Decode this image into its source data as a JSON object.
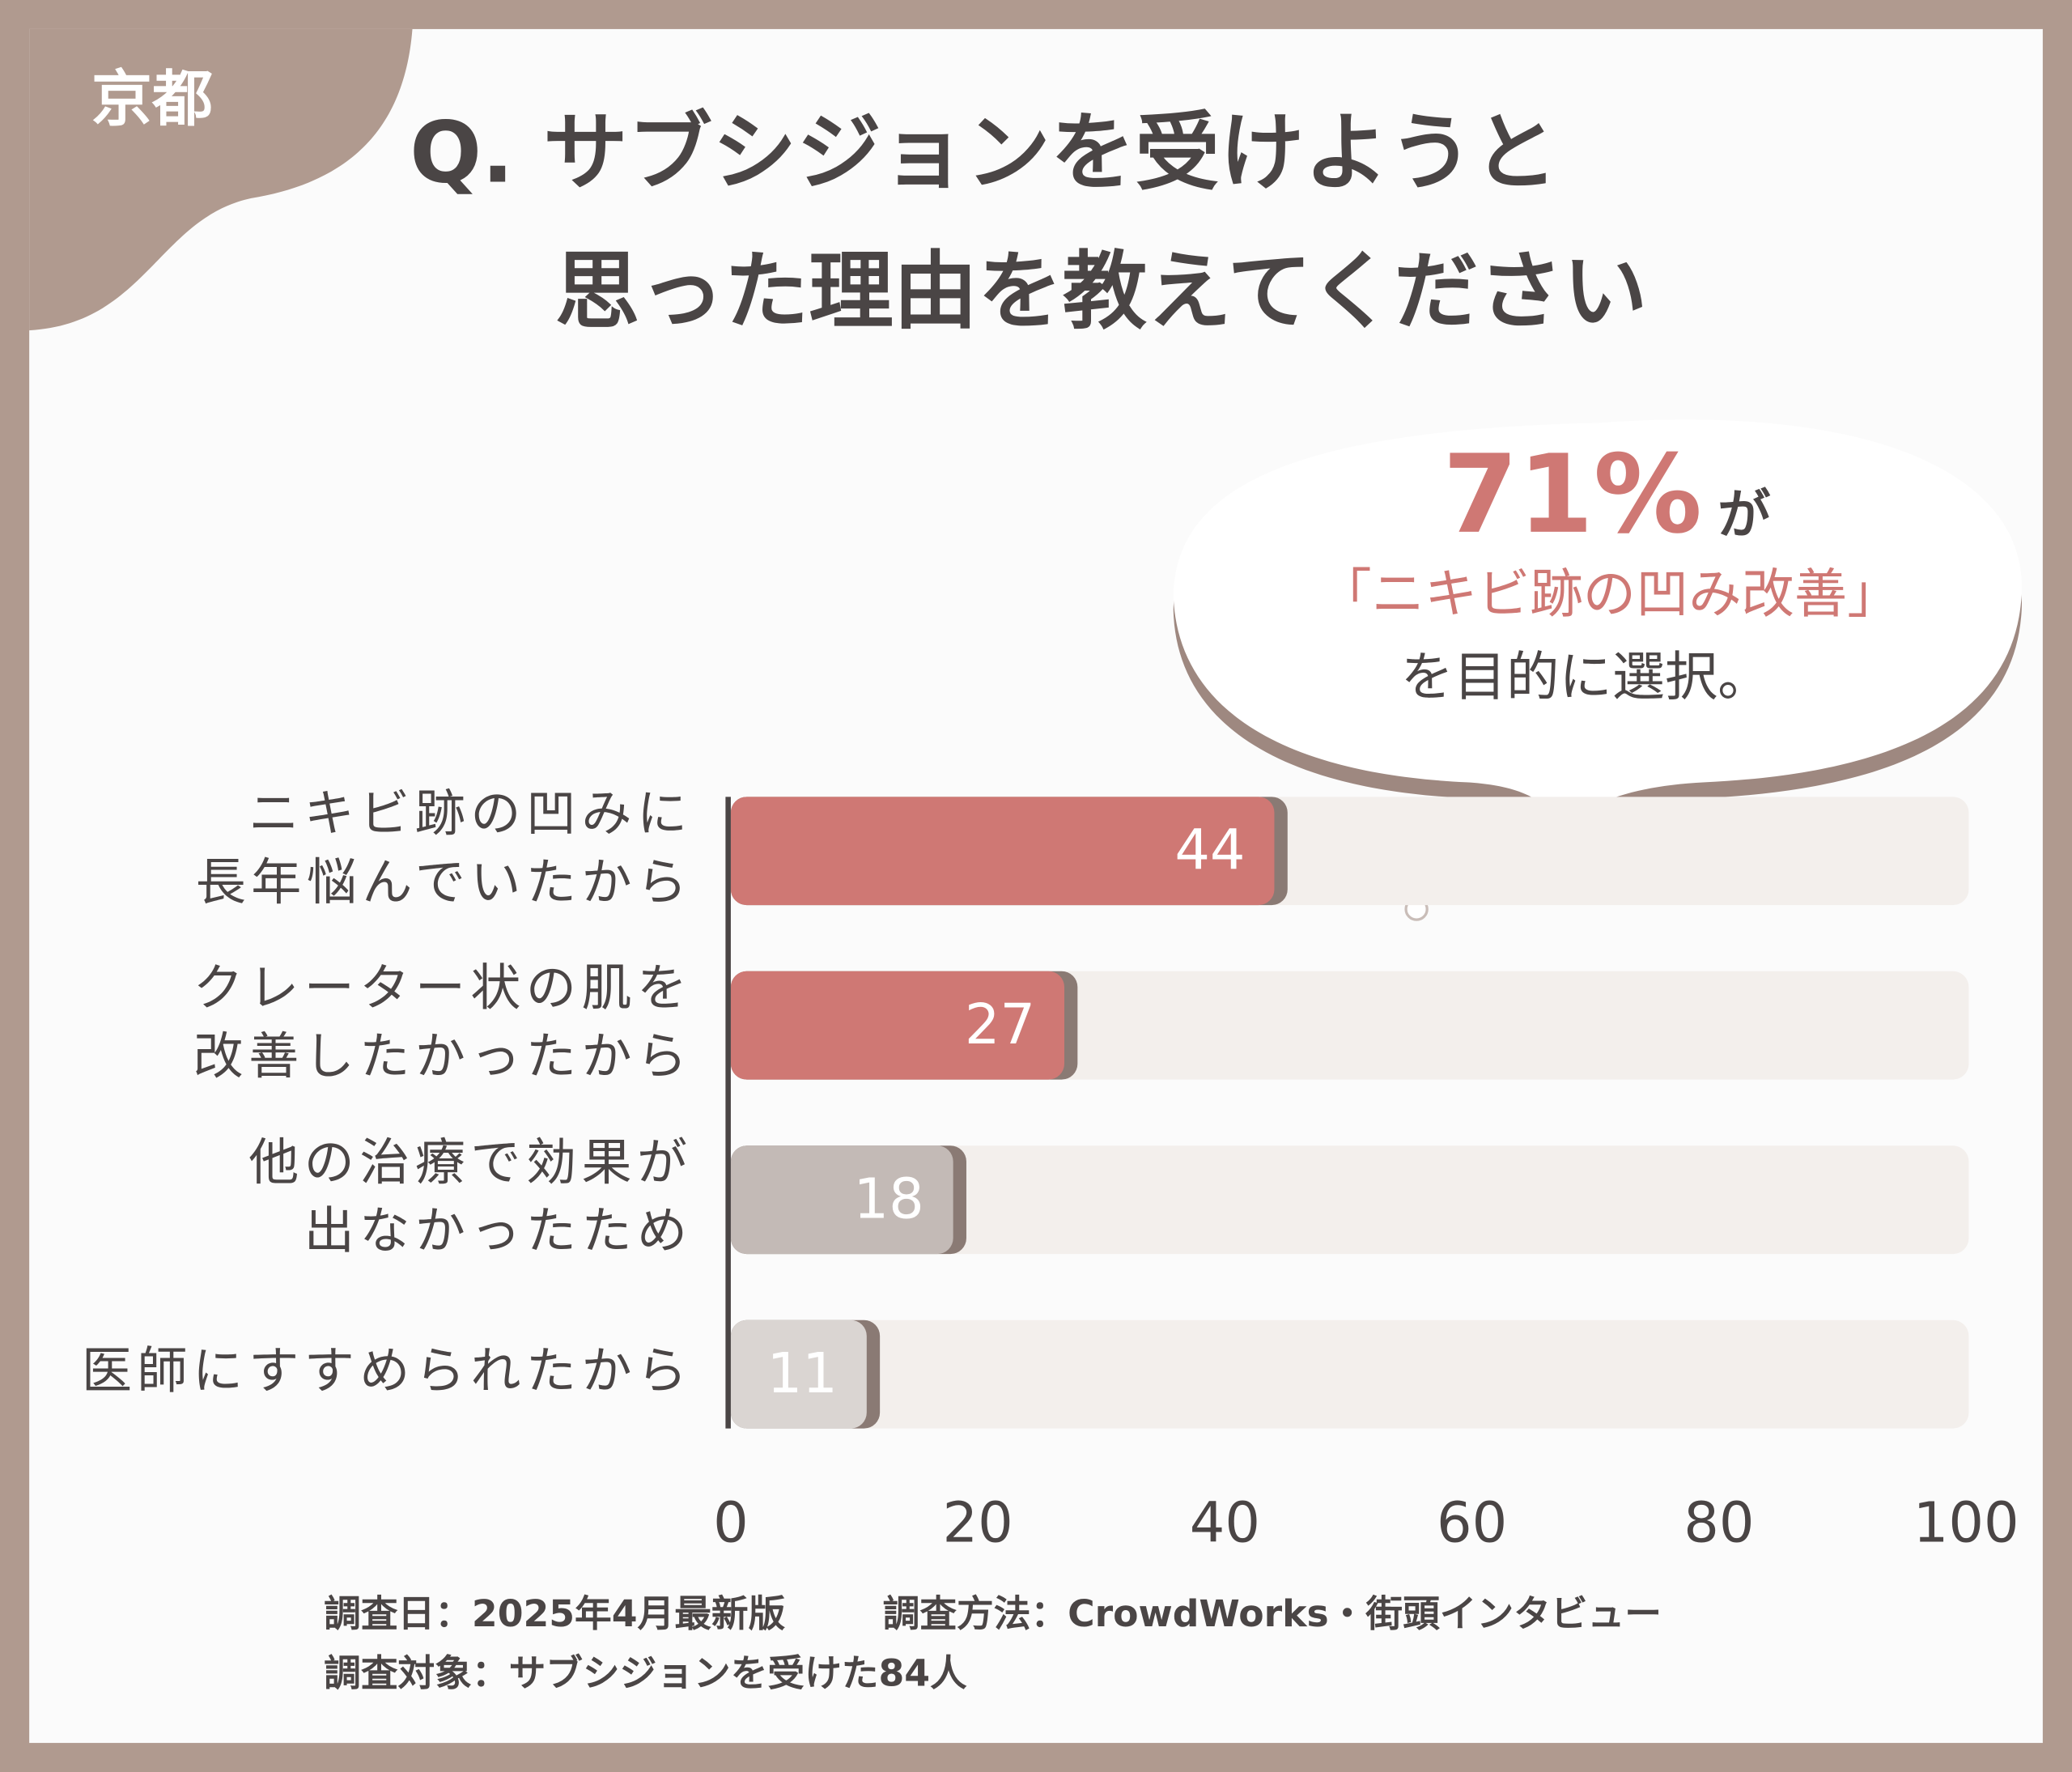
{
  "chart_data": {
    "type": "barh",
    "region": "京都",
    "title": [
      "Q. サブシジョンを受けようと",
      "思った理由を教えてください"
    ],
    "annotation": {
      "highlight": "71%",
      "suffix": "が",
      "emphasis": "「ニキビ跡の凹み改善」",
      "text": "を目的に選択。"
    },
    "categories": [
      [
        "ニキビ跡の凹みに",
        "長年悩んでいたから"
      ],
      [
        "クレーター状の肌を",
        "改善したかったから"
      ],
      [
        "他の治療で効果が",
        "出なかったため"
      ],
      [
        "医師にすすめられたから"
      ]
    ],
    "values": [
      44,
      27,
      18,
      11
    ],
    "colors": [
      "#cf7874",
      "#cf7874",
      "#c3bab6",
      "#dad5d2"
    ],
    "xlim": [
      0,
      100
    ],
    "xticks": [
      0,
      20,
      40,
      60,
      80,
      100
    ],
    "footnotes": [
      "調査日：2025年4月最新版",
      "調査方法：CrowdWorks・街頭インタビュー",
      "調査対象：サブシジョンを受けた84人"
    ]
  }
}
